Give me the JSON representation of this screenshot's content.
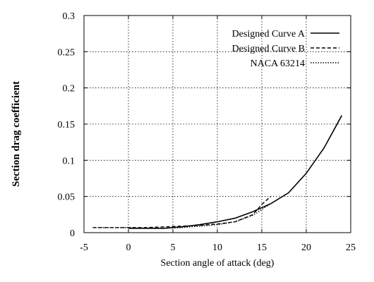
{
  "chart_data": {
    "type": "line",
    "title": "",
    "xlabel": "Section angle of attack (deg)",
    "ylabel": "Section drag coefficient",
    "xlim": [
      -5,
      25
    ],
    "ylim": [
      0,
      0.3
    ],
    "x_ticks": [
      -5,
      0,
      5,
      10,
      15,
      20,
      25
    ],
    "x_tick_labels": [
      "-5",
      "0",
      "5",
      "10",
      "15",
      "20",
      "25"
    ],
    "y_ticks": [
      0,
      0.05,
      0.1,
      0.15,
      0.2,
      0.25,
      0.3
    ],
    "y_tick_labels": [
      "0",
      "0.05",
      "0.1",
      "0.15",
      "0.2",
      "0.25",
      "0.3"
    ],
    "grid": true,
    "grid_style": "dotted",
    "legend_position": "top-right",
    "series": [
      {
        "name": "Designed Curve A",
        "dash": "solid",
        "x": [
          0,
          2,
          4,
          6,
          8,
          10,
          12,
          14,
          16,
          18,
          20,
          22,
          24
        ],
        "y": [
          0.006,
          0.006,
          0.006,
          0.008,
          0.011,
          0.015,
          0.02,
          0.029,
          0.04,
          0.055,
          0.082,
          0.117,
          0.162
        ]
      },
      {
        "name": "Designed Curve B",
        "dash": "dashed",
        "x": [
          -4,
          -2,
          0,
          2,
          4,
          6,
          8,
          10,
          12,
          14,
          15,
          16
        ],
        "y": [
          0.007,
          0.007,
          0.007,
          0.007,
          0.008,
          0.009,
          0.01,
          0.012,
          0.015,
          0.025,
          0.039,
          0.05
        ]
      },
      {
        "name": "NACA 63214",
        "dash": "dotted",
        "x": [
          -4,
          -2,
          0,
          2,
          4,
          6,
          8,
          10,
          12,
          14,
          15,
          16
        ],
        "y": [
          0.007,
          0.007,
          0.007,
          0.006,
          0.006,
          0.007,
          0.009,
          0.011,
          0.015,
          0.024,
          0.032,
          0.04
        ]
      }
    ]
  }
}
